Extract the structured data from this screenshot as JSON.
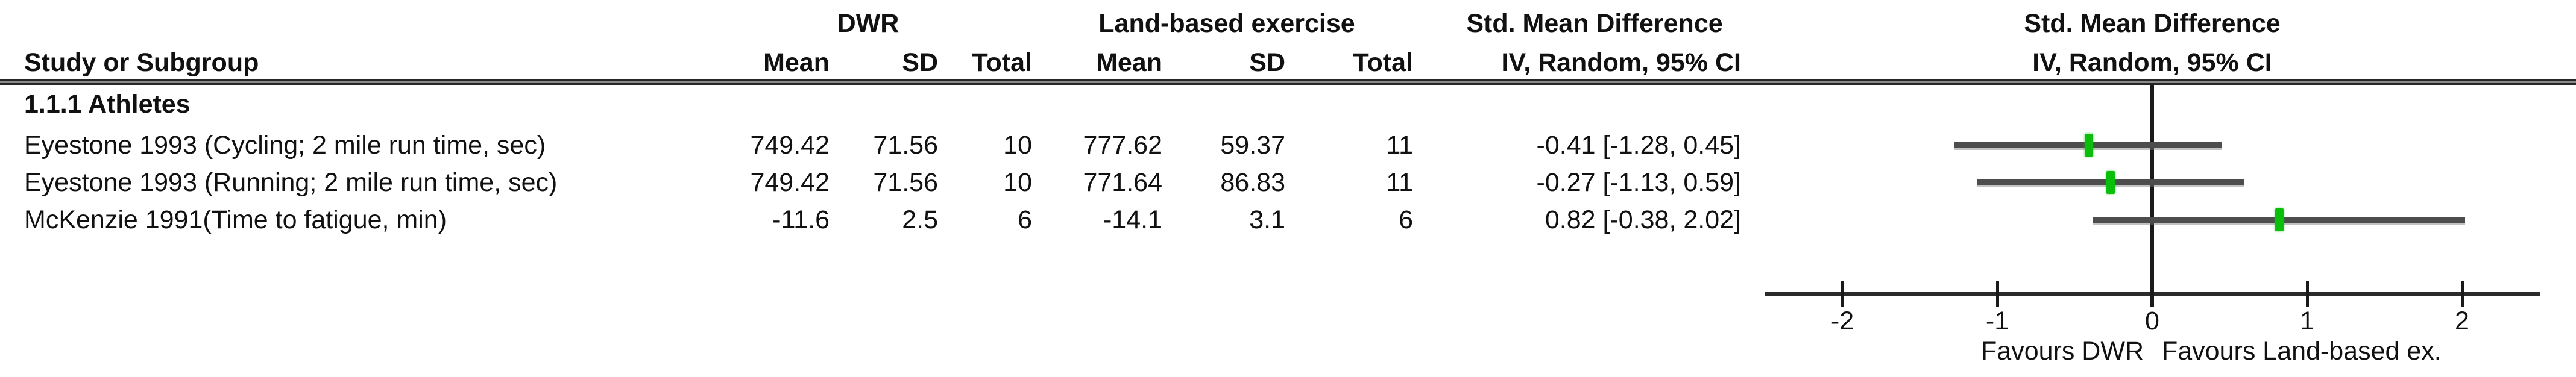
{
  "figure": {
    "group_headers": {
      "dwr": "DWR",
      "land": "Land-based exercise",
      "smd_left": "Std. Mean Difference",
      "smd_right": "Std. Mean Difference"
    },
    "column_headers": {
      "study": "Study or Subgroup",
      "mean": "Mean",
      "sd": "SD",
      "total": "Total",
      "ci": "IV, Random, 95% CI"
    },
    "subgroup_label": "1.1.1 Athletes",
    "rows": [
      {
        "study": "Eyestone 1993 (Cycling; 2 mile run time, sec)",
        "dwr_mean": "749.42",
        "dwr_sd": "71.56",
        "dwr_total": "10",
        "land_mean": "777.62",
        "land_sd": "59.37",
        "land_total": "11",
        "ci_text": "-0.41 [-1.28, 0.45]"
      },
      {
        "study": "Eyestone 1993 (Running; 2 mile run time, sec)",
        "dwr_mean": "749.42",
        "dwr_sd": "71.56",
        "dwr_total": "10",
        "land_mean": "771.64",
        "land_sd": "86.83",
        "land_total": "11",
        "ci_text": "-0.27 [-1.13, 0.59]"
      },
      {
        "study": "McKenzie 1991(Time to fatigue, min)",
        "dwr_mean": "-11.6",
        "dwr_sd": "2.5",
        "dwr_total": "6",
        "land_mean": "-14.1",
        "land_sd": "3.1",
        "land_total": "6",
        "ci_text": "0.82 [-0.38, 2.02]"
      }
    ]
  },
  "chart_data": {
    "type": "scatter",
    "subtype": "forest-plot",
    "title": "Std. Mean Difference IV, Random, 95% CI",
    "subgroup": "1.1.1 Athletes",
    "series": [
      {
        "name": "Eyestone 1993 (Cycling; 2 mile run time, sec)",
        "estimate": -0.41,
        "ci_low": -1.28,
        "ci_high": 0.45,
        "dwr": {
          "mean": 749.42,
          "sd": 71.56,
          "total": 10
        },
        "land": {
          "mean": 777.62,
          "sd": 59.37,
          "total": 11
        }
      },
      {
        "name": "Eyestone 1993 (Running; 2 mile run time, sec)",
        "estimate": -0.27,
        "ci_low": -1.13,
        "ci_high": 0.59,
        "dwr": {
          "mean": 749.42,
          "sd": 71.56,
          "total": 10
        },
        "land": {
          "mean": 771.64,
          "sd": 86.83,
          "total": 11
        }
      },
      {
        "name": "McKenzie 1991(Time to fatigue, min)",
        "estimate": 0.82,
        "ci_low": -0.38,
        "ci_high": 2.02,
        "dwr": {
          "mean": -11.6,
          "sd": 2.5,
          "total": 6
        },
        "land": {
          "mean": -14.1,
          "sd": 3.1,
          "total": 6
        }
      }
    ],
    "xlim": [
      -2.5,
      2.5
    ],
    "x_ticks": [
      "-2",
      "-1",
      "0",
      "1",
      "2"
    ],
    "x_tick_values": [
      -2,
      -1,
      0,
      1,
      2
    ],
    "favours_left": "Favours DWR",
    "favours_right": "Favours Land-based ex.",
    "grid": false,
    "legend": false
  },
  "colors": {
    "marker_green": "#0cbe0c",
    "ci_line_gray": "#4d4d4d",
    "axis_black": "#1a1a1a",
    "text_black": "#111111"
  }
}
